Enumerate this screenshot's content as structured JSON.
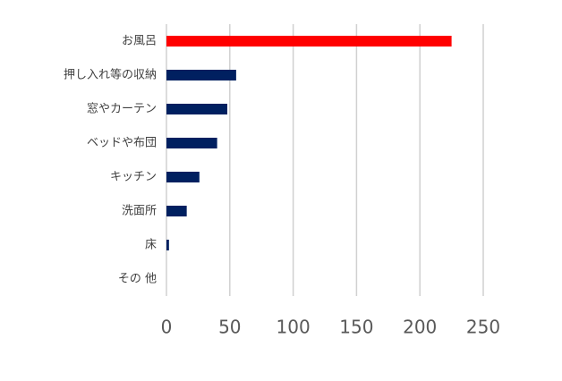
{
  "chart_data": {
    "type": "bar",
    "orientation": "horizontal",
    "categories": [
      "お風呂",
      "押し入れ等の収納",
      "窓やカーテン",
      "ベッドや布団",
      "キッチン",
      "洗面所",
      "床",
      "その 他"
    ],
    "values": [
      225,
      55,
      48,
      40,
      26,
      16,
      2,
      0
    ],
    "colors": [
      "#ff0000",
      "#002060",
      "#002060",
      "#002060",
      "#002060",
      "#002060",
      "#002060",
      "#002060"
    ],
    "xlim": [
      0,
      250
    ],
    "xticks": [
      0,
      50,
      100,
      150,
      200,
      250
    ],
    "grid": true
  }
}
